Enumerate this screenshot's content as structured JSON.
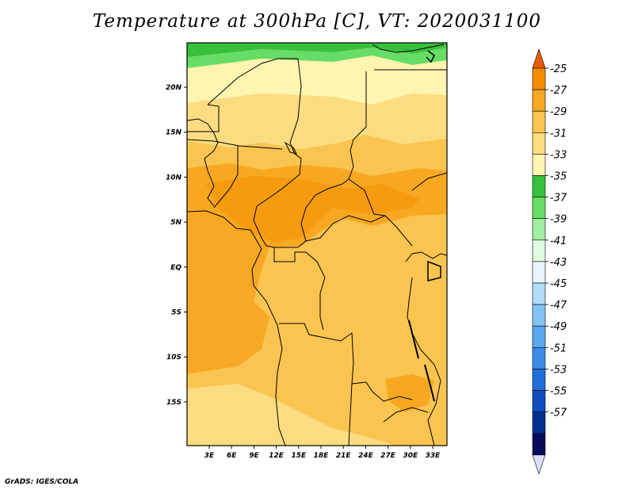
{
  "title": "Temperature at 300hPa [C], VT: 2020031100",
  "credit": "GrADS: IGES/COLA",
  "map": {
    "lat_labels": [
      "20N",
      "15N",
      "10N",
      "5N",
      "EQ",
      "5S",
      "10S",
      "15S"
    ],
    "lon_labels": [
      "3E",
      "6E",
      "9E",
      "12E",
      "15E",
      "18E",
      "21E",
      "24E",
      "27E",
      "30E",
      "33E"
    ]
  },
  "colorbar": {
    "labels": [
      "-25",
      "-27",
      "-29",
      "-31",
      "-33",
      "-35",
      "-37",
      "-39",
      "-41",
      "-43",
      "-45",
      "-47",
      "-49",
      "-51",
      "-53",
      "-55",
      "-57"
    ],
    "colors": [
      "#f05a00",
      "#f58c00",
      "#f7a820",
      "#f9c450",
      "#fbdc80",
      "#fff4b0",
      "#37c03c",
      "#66dd66",
      "#a0eea0",
      "#e0fae0",
      "#e6f4ff",
      "#b2dcfa",
      "#84c2f6",
      "#5aa6f0",
      "#3a8ce6",
      "#1f6ed8",
      "#0c4cbc",
      "#003090",
      "#080a5a",
      "#dcdcff"
    ]
  }
}
